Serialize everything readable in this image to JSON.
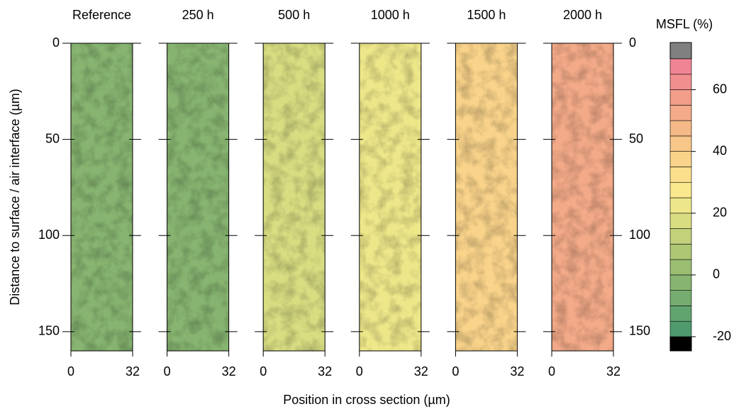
{
  "chart_data": {
    "type": "contour",
    "xlabel": "Position in cross section (µm)",
    "ylabel": "Distance to surface / air interface (µm)",
    "xlim": [
      0,
      32
    ],
    "xticks": [
      0,
      32
    ],
    "ylim": [
      160,
      0
    ],
    "yticks": [
      0,
      50,
      100,
      150
    ],
    "panels": [
      {
        "title": "Reference",
        "value": -3
      },
      {
        "title": "250 h",
        "value": -3
      },
      {
        "title": "500 h",
        "value": 15
      },
      {
        "title": "1000 h",
        "value": 22
      },
      {
        "title": "1500 h",
        "value": 38
      },
      {
        "title": "2000 h",
        "value": 52
      }
    ],
    "colorbar": {
      "label": "MSFL (%)",
      "lim": [
        -20,
        70
      ],
      "levels": [
        -20,
        -15,
        -10,
        -5,
        0,
        5,
        10,
        15,
        20,
        25,
        30,
        35,
        40,
        45,
        50,
        55,
        60,
        65,
        70
      ],
      "colors": [
        "#4f9a6e",
        "#62a470",
        "#75ad70",
        "#87b571",
        "#9abd72",
        "#aec774",
        "#c2d17a",
        "#d8dd82",
        "#eee78a",
        "#fbe98e",
        "#fbdf8c",
        "#f9d38a",
        "#f7c688",
        "#f5b887",
        "#f3aa88",
        "#f29c8a",
        "#f18f8e",
        "#f08494"
      ],
      "under_color": "#000000",
      "over_color": "#808080",
      "ticks": [
        -20,
        0,
        20,
        40,
        60
      ]
    }
  }
}
